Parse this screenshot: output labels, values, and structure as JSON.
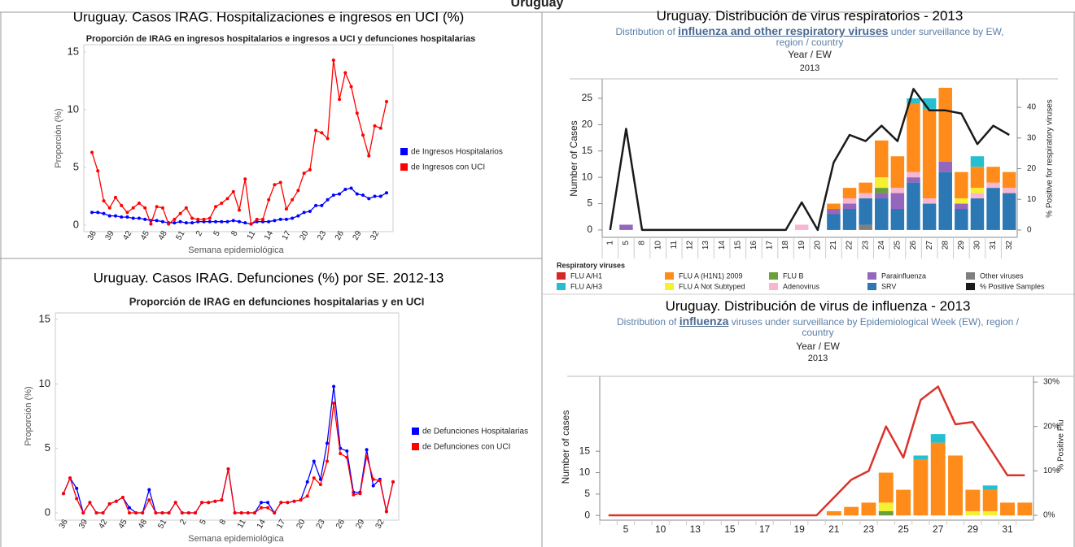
{
  "title": "Uruguay",
  "chart_data": [
    {
      "type": "line",
      "title": "Uruguay. Casos IRAG. Hospitalizaciones e ingresos en UCI (%)",
      "subtitle": "Proporción de IRAG en ingresos hospitalarios e ingresos a UCI y defunciones hospitalarias",
      "x_label": "Semana epidemiológica",
      "y_label": "Proporción (%)",
      "categories": [
        36,
        null,
        null,
        39,
        null,
        null,
        42,
        null,
        null,
        45,
        null,
        null,
        48,
        null,
        null,
        51,
        null,
        null,
        2,
        null,
        null,
        5,
        null,
        null,
        8,
        null,
        null,
        11,
        null,
        null,
        14,
        null,
        null,
        17,
        null,
        null,
        20,
        null,
        null,
        23,
        null,
        null,
        26,
        null,
        null,
        29,
        null,
        null,
        32,
        null,
        null
      ],
      "series": [
        {
          "name": "de Ingresos Hospitalarios",
          "color": "#0000ff",
          "values": [
            1.1,
            1.1,
            1.0,
            0.8,
            0.8,
            0.7,
            0.7,
            0.6,
            0.6,
            0.5,
            0.4,
            0.4,
            0.3,
            0.2,
            0.2,
            0.3,
            0.2,
            0.2,
            0.3,
            0.3,
            0.3,
            0.3,
            0.3,
            0.3,
            0.4,
            0.3,
            0.2,
            0.1,
            0.3,
            0.3,
            0.3,
            0.4,
            0.5,
            0.5,
            0.6,
            0.8,
            1.1,
            1.2,
            1.7,
            1.7,
            2.2,
            2.6,
            2.7,
            3.1,
            3.2,
            2.7,
            2.6,
            2.3,
            2.5,
            2.5,
            2.8
          ]
        },
        {
          "name": "de Ingresos con UCI",
          "color": "#ff0000",
          "values": [
            6.3,
            4.7,
            2.1,
            1.5,
            2.4,
            1.7,
            1.1,
            1.5,
            1.9,
            1.5,
            0.1,
            1.6,
            1.5,
            0.1,
            0.5,
            1.0,
            1.5,
            0.6,
            0.5,
            0.5,
            0.6,
            1.6,
            1.9,
            2.3,
            2.9,
            1.3,
            4.0,
            0.1,
            0.5,
            0.5,
            2.2,
            3.5,
            3.7,
            1.4,
            2.2,
            3.0,
            4.5,
            4.8,
            8.2,
            8.0,
            7.5,
            14.3,
            10.9,
            13.2,
            12.0,
            9.7,
            7.8,
            6.0,
            8.6,
            8.4,
            10.7
          ]
        }
      ],
      "ylim": [
        0,
        15
      ],
      "yticks": [
        0,
        5,
        10,
        15
      ],
      "grid": false,
      "legend": "right"
    },
    {
      "type": "line",
      "title": "Uruguay. Casos IRAG. Defunciones (%) por SE.  2012-13",
      "subtitle": "Proporción de IRAG en defunciones hospitalarias y en UCI",
      "x_label": "Semana epidemiológica",
      "y_label": "Proporción (%)",
      "categories": [
        36,
        null,
        null,
        39,
        null,
        null,
        42,
        null,
        null,
        45,
        null,
        null,
        48,
        null,
        null,
        51,
        null,
        null,
        2,
        null,
        null,
        5,
        null,
        null,
        8,
        null,
        null,
        11,
        null,
        null,
        14,
        null,
        null,
        17,
        null,
        null,
        20,
        null,
        null,
        23,
        null,
        null,
        26,
        null,
        null,
        29,
        null,
        null,
        32,
        null,
        null
      ],
      "series": [
        {
          "name": "de Defunciones Hospitalarias",
          "color": "#0000ff",
          "values": [
            1.5,
            2.7,
            1.9,
            0,
            0.8,
            0,
            0,
            0.7,
            0.9,
            1.2,
            0.4,
            0,
            0,
            1.8,
            0,
            0,
            0,
            0.8,
            0,
            0,
            0,
            0.8,
            0.8,
            0.9,
            1.0,
            3.4,
            0,
            0,
            0,
            0,
            0.8,
            0.8,
            0,
            0.8,
            0.8,
            0.9,
            1.0,
            2.4,
            4.0,
            2.6,
            5.4,
            9.8,
            5.0,
            4.8,
            1.6,
            1.6,
            4.9,
            2.1,
            2.6,
            0.1,
            2.4
          ]
        },
        {
          "name": "de Defunciones con UCI",
          "color": "#ff0000",
          "values": [
            1.5,
            2.7,
            1.1,
            0,
            0.8,
            0,
            0,
            0.7,
            0.9,
            1.2,
            0,
            0,
            0,
            1.0,
            0,
            0,
            0,
            0.8,
            0,
            0,
            0,
            0.8,
            0.8,
            0.9,
            1.0,
            3.4,
            0,
            0,
            0,
            0,
            0.4,
            0.4,
            0,
            0.8,
            0.8,
            0.9,
            1.0,
            1.3,
            2.7,
            2.2,
            4.0,
            8.5,
            4.6,
            4.3,
            1.4,
            1.5,
            4.4,
            2.6,
            2.5,
            0.1,
            2.4
          ]
        }
      ],
      "ylim": [
        0,
        15
      ],
      "yticks": [
        0,
        5,
        10,
        15
      ],
      "grid": false,
      "legend": "right"
    },
    {
      "type": "bar",
      "stacked": true,
      "title": "Uruguay. Distribución de virus respiratorios - 2013",
      "subtitle": [
        "Distribution of ",
        "influenza and other respiratory viruses",
        " under surveillance by EW, region / country"
      ],
      "xgroup_label": "Year  /  EW",
      "xgroup": "2013",
      "y_label": "Number of Cases",
      "y2_label": "% Positive for respiratory viruses",
      "legend_title": "Respiratory viruses",
      "categories": [
        1,
        5,
        8,
        10,
        11,
        12,
        13,
        14,
        15,
        16,
        17,
        18,
        19,
        20,
        21,
        22,
        23,
        24,
        25,
        26,
        27,
        28,
        29,
        30,
        31,
        32
      ],
      "series": [
        {
          "name": "Other viruses",
          "color": "#7f7f7f",
          "values": [
            0,
            0,
            0,
            0,
            0,
            0,
            0,
            0,
            0,
            0,
            0,
            0,
            0,
            0,
            0,
            0,
            1,
            0,
            0,
            0,
            0,
            0,
            0,
            0,
            0,
            0
          ]
        },
        {
          "name": "SRV",
          "color": "#2b78b4",
          "values": [
            0,
            0,
            0,
            0,
            0,
            0,
            0,
            0,
            0,
            0,
            0,
            0,
            0,
            0,
            3,
            4,
            5,
            6,
            4,
            9,
            5,
            11,
            4,
            6,
            8,
            7
          ]
        },
        {
          "name": "Parainfluenza",
          "color": "#9467bd",
          "values": [
            0,
            1,
            0,
            0,
            0,
            0,
            0,
            0,
            0,
            0,
            0,
            0,
            0,
            0,
            1,
            1,
            0,
            1,
            3,
            1,
            0,
            2,
            1,
            0,
            0,
            0
          ]
        },
        {
          "name": "Adenovirus",
          "color": "#f7b6d2",
          "values": [
            0,
            0,
            0,
            0,
            0,
            0,
            0,
            0,
            0,
            0,
            0,
            0,
            1,
            0,
            0,
            1,
            1,
            0,
            1,
            1,
            1,
            0,
            0,
            1,
            1,
            1
          ]
        },
        {
          "name": "FLU B",
          "color": "#6a9f3a",
          "values": [
            0,
            0,
            0,
            0,
            0,
            0,
            0,
            0,
            0,
            0,
            0,
            0,
            0,
            0,
            0,
            0,
            0,
            1,
            0,
            0,
            0,
            0,
            0,
            0,
            0,
            0
          ]
        },
        {
          "name": "FLU A Not Subtyped",
          "color": "#f5f032",
          "values": [
            0,
            0,
            0,
            0,
            0,
            0,
            0,
            0,
            0,
            0,
            0,
            0,
            0,
            0,
            0,
            0,
            0,
            2,
            0,
            0,
            0,
            0,
            1,
            1,
            0,
            0
          ]
        },
        {
          "name": "FLU A (H1N1) 2009",
          "color": "#ff8c1a",
          "values": [
            0,
            0,
            0,
            0,
            0,
            0,
            0,
            0,
            0,
            0,
            0,
            0,
            0,
            0,
            1,
            2,
            2,
            7,
            6,
            13,
            17,
            14,
            5,
            4,
            3,
            3
          ]
        },
        {
          "name": "FLU A/H3",
          "color": "#25bfcf",
          "values": [
            0,
            0,
            0,
            0,
            0,
            0,
            0,
            0,
            0,
            0,
            0,
            0,
            0,
            0,
            0,
            0,
            0,
            0,
            0,
            1,
            2,
            0,
            0,
            2,
            0,
            0
          ]
        },
        {
          "name": "FLU A/H1",
          "color": "#d62728",
          "values": [
            0,
            0,
            0,
            0,
            0,
            0,
            0,
            0,
            0,
            0,
            0,
            0,
            0,
            0,
            0,
            0,
            0,
            0,
            0,
            0,
            0,
            0,
            0,
            0,
            0,
            0
          ]
        },
        {
          "name": "% Positive Samples",
          "color": "#1a1a1a",
          "type": "line",
          "axis": "y2",
          "values": [
            0,
            33,
            0,
            0,
            0,
            0,
            0,
            0,
            0,
            0,
            0,
            0,
            9,
            0,
            22,
            31,
            29,
            34,
            29,
            46,
            39,
            39,
            38,
            28,
            34,
            31
          ]
        }
      ],
      "ylim": [
        -1.4,
        28.7
      ],
      "yticks": [
        0,
        5,
        10,
        15,
        20,
        25
      ],
      "y2lim": [
        -2.4,
        49.3
      ],
      "y2ticks": [
        0,
        10,
        20,
        30,
        40
      ],
      "grid": false,
      "legend": "bottom"
    },
    {
      "type": "bar",
      "stacked": true,
      "title": "Uruguay. Distribución de virus de influenza - 2013",
      "subtitle": [
        "Distribution of ",
        "influenza",
        " viruses under surveillance by Epidemiological Week (EW), region / country"
      ],
      "xgroup_label": "Year  /  EW",
      "xgroup": "2013",
      "y_label": "Number of cases",
      "y2_label": "% Positive Flu",
      "categories": [
        null,
        5,
        null,
        10,
        null,
        13,
        null,
        15,
        null,
        17,
        null,
        19,
        null,
        21,
        null,
        23,
        null,
        25,
        null,
        27,
        null,
        29,
        null,
        31,
        null
      ],
      "series": [
        {
          "color": "#6a9f3a",
          "values": [
            0,
            0,
            0,
            0,
            0,
            0,
            0,
            0,
            0,
            0,
            0,
            0,
            0,
            0,
            0,
            0,
            1,
            0,
            0,
            0,
            0,
            0,
            0,
            0,
            0
          ]
        },
        {
          "color": "#f5f032",
          "values": [
            0,
            0,
            0,
            0,
            0,
            0,
            0,
            0,
            0,
            0,
            0,
            0,
            0,
            0,
            0,
            0,
            2,
            0,
            0,
            0,
            0,
            1,
            1,
            0,
            0
          ]
        },
        {
          "color": "#ff8c1a",
          "values": [
            0,
            0,
            0,
            0,
            0,
            0,
            0,
            0,
            0,
            0,
            0,
            0,
            0,
            1,
            2,
            3,
            7,
            6,
            13,
            17,
            14,
            5,
            5,
            3,
            3
          ]
        },
        {
          "color": "#25bfcf",
          "values": [
            0,
            0,
            0,
            0,
            0,
            0,
            0,
            0,
            0,
            0,
            0,
            0,
            0,
            0,
            0,
            0,
            0,
            0,
            1,
            2,
            0,
            0,
            1,
            0,
            0
          ]
        },
        {
          "color": "#d9342b",
          "type": "line",
          "axis": "y2",
          "values": [
            0,
            0,
            0,
            0,
            0,
            0,
            0,
            0,
            0,
            0,
            0,
            0,
            0,
            4,
            8,
            10,
            20,
            13,
            26,
            29,
            20.5,
            21,
            15,
            9,
            9
          ]
        }
      ],
      "ylim": [
        -1.1,
        32.5
      ],
      "yticks": [
        0,
        5,
        10,
        15
      ],
      "y2lim": [
        -1.1,
        31.3
      ],
      "y2ticks": [
        {
          "value": 0,
          "label": "0%"
        },
        {
          "value": 10,
          "label": "10%"
        },
        {
          "value": 20,
          "label": "20%"
        },
        {
          "value": 30,
          "label": "30%"
        }
      ],
      "grid": false
    }
  ]
}
